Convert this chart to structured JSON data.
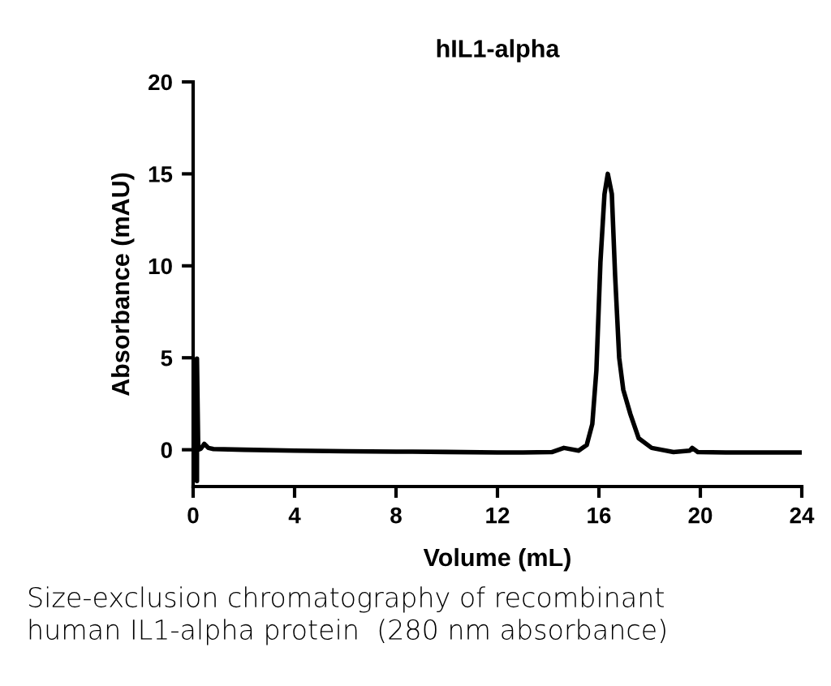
{
  "chart_data": {
    "type": "line",
    "title": "hIL1-alpha",
    "xlabel": "Volume (mL)",
    "ylabel": "Absorbance (mAU)",
    "x": [
      0.1,
      0.15,
      0.15,
      0.15,
      0.2,
      0.3,
      0.44,
      0.6,
      0.8,
      2,
      4,
      6,
      8,
      10,
      12,
      13,
      14.14,
      14.62,
      15.2,
      15.52,
      15.74,
      15.9,
      16.06,
      16.22,
      16.35,
      16.51,
      16.64,
      16.8,
      16.96,
      17.24,
      17.57,
      18.08,
      18.94,
      19.58,
      19.68,
      19.9,
      21,
      22,
      23,
      24
    ],
    "series": [
      {
        "color": "#000000",
        "values": [
          0.0,
          0.0,
          -1.7,
          4.95,
          0.0,
          0.05,
          0.32,
          0.1,
          0.04,
          0.0,
          -0.05,
          -0.08,
          -0.1,
          -0.12,
          -0.15,
          -0.15,
          -0.13,
          0.1,
          -0.05,
          0.26,
          1.4,
          4.3,
          10.2,
          13.9,
          15.0,
          13.9,
          9.45,
          5.0,
          3.27,
          1.94,
          0.62,
          0.1,
          -0.13,
          -0.05,
          0.1,
          -0.13,
          -0.15,
          -0.15,
          -0.15,
          -0.15
        ]
      }
    ],
    "xlim": [
      0,
      24
    ],
    "xticks": [
      0,
      4,
      8,
      12,
      16,
      20,
      24
    ],
    "ylim": [
      -2,
      20
    ],
    "yticks": [
      0,
      5,
      10,
      15,
      20
    ],
    "grid": false,
    "legend": false,
    "marker": "none",
    "line_style": "solid",
    "annotations": [
      "Size-exclusion chromatography of recombinant\nhuman IL1-alpha protein  (280 nm absorbance)"
    ]
  }
}
